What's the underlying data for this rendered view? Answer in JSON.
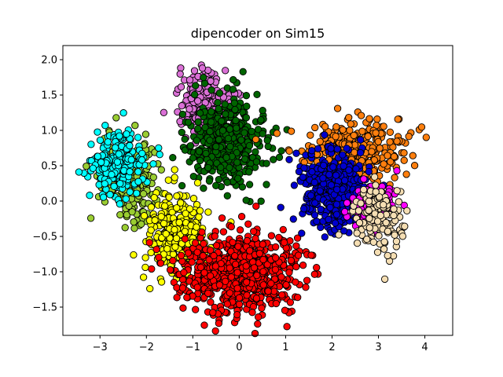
{
  "chart_data": {
    "type": "scatter",
    "title": "dipencoder on Sim15",
    "xlabel": "",
    "ylabel": "",
    "xlim": [
      -3.8,
      4.6
    ],
    "ylim": [
      -1.9,
      2.2
    ],
    "x_ticks": [
      -3,
      -2,
      -1,
      0,
      1,
      2,
      3,
      4
    ],
    "x_tick_labels": [
      "−3",
      "−2",
      "−1",
      "0",
      "1",
      "2",
      "3",
      "4"
    ],
    "y_ticks": [
      -1.5,
      -1.0,
      -0.5,
      0.0,
      0.5,
      1.0,
      1.5,
      2.0
    ],
    "y_tick_labels": [
      "−1.5",
      "−1.0",
      "−0.5",
      "0.0",
      "0.5",
      "1.0",
      "1.5",
      "2.0"
    ],
    "grid": false,
    "legend": "none",
    "marker_edge_color": "#000000",
    "clusters": [
      {
        "color": "#9acd32",
        "center": [
          -2.35,
          0.35
        ],
        "spread": [
          0.3,
          0.28
        ],
        "count": 220
      },
      {
        "color": "#00ffff",
        "center": [
          -2.65,
          0.55
        ],
        "spread": [
          0.28,
          0.22
        ],
        "count": 220
      },
      {
        "color": "#da70d6",
        "center": [
          -0.75,
          1.4
        ],
        "spread": [
          0.28,
          0.22
        ],
        "count": 230
      },
      {
        "color": "#006400",
        "center": [
          -0.25,
          0.85
        ],
        "spread": [
          0.42,
          0.3
        ],
        "count": 420
      },
      {
        "color": "#ffff00",
        "center": [
          -1.35,
          -0.45
        ],
        "spread": [
          0.32,
          0.3
        ],
        "count": 300
      },
      {
        "color": "#ff0000",
        "center": [
          -0.05,
          -1.0
        ],
        "spread": [
          0.65,
          0.28
        ],
        "count": 700
      },
      {
        "color": "#ff7f0e",
        "center": [
          2.5,
          0.7
        ],
        "spread": [
          0.55,
          0.22
        ],
        "count": 360
      },
      {
        "color": "#0000cd",
        "center": [
          2.0,
          0.15
        ],
        "spread": [
          0.35,
          0.28
        ],
        "count": 360
      },
      {
        "color": "#ff00ff",
        "center": [
          2.85,
          -0.1
        ],
        "spread": [
          0.22,
          0.17
        ],
        "count": 120
      },
      {
        "color": "#f5deb3",
        "center": [
          2.95,
          -0.25
        ],
        "spread": [
          0.28,
          0.22
        ],
        "count": 140
      }
    ]
  }
}
